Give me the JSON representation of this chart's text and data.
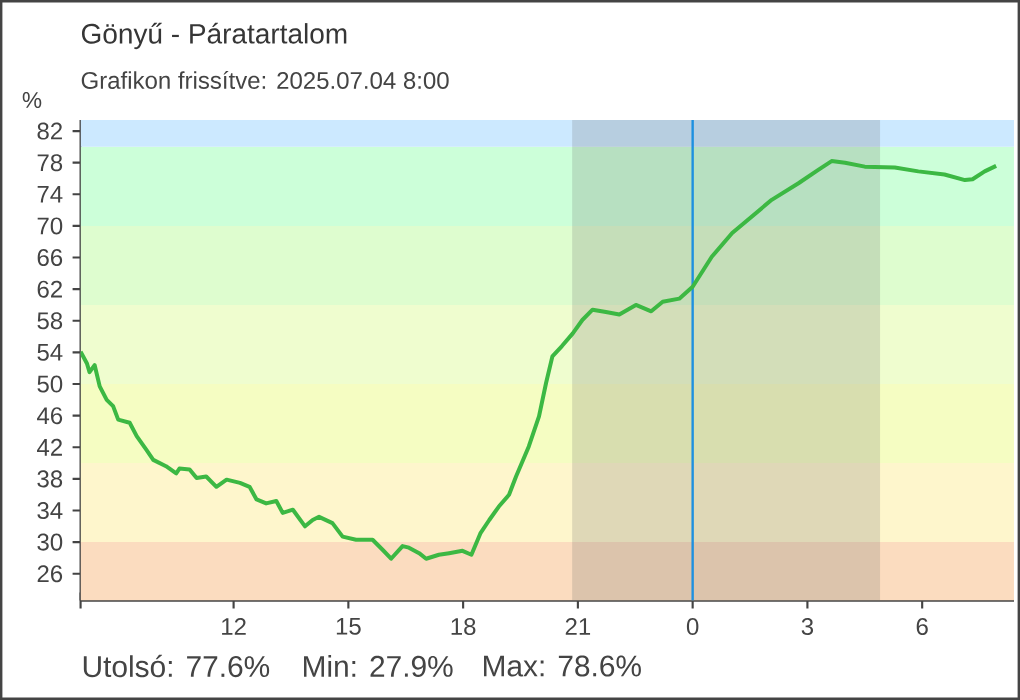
{
  "chart_data": {
    "type": "line",
    "title": "Gönyű - Páratartalom",
    "subtitle": "Grafikon frissítve: 2025.07.04 8:00",
    "ylabel": "%",
    "annotations": [
      "Utolsó: 77.6%",
      "Min: 27.9%",
      "Max: 78.6%"
    ],
    "xlim": [
      "2025-07-03T08:00",
      "2025-07-04T08:24"
    ],
    "ylim": [
      22.6,
      83.4
    ],
    "xticks": [
      {
        "value": "2025-07-03T08:00",
        "label": null
      },
      {
        "value": "2025-07-03T12:00",
        "label": "12"
      },
      {
        "value": "2025-07-03T15:00",
        "label": "15"
      },
      {
        "value": "2025-07-03T18:00",
        "label": "18"
      },
      {
        "value": "2025-07-03T21:00",
        "label": "21"
      },
      {
        "value": "2025-07-04T00:00",
        "label": "0"
      },
      {
        "value": "2025-07-04T03:00",
        "label": "3"
      },
      {
        "value": "2025-07-04T06:00",
        "label": "6"
      }
    ],
    "yticks": [
      26,
      30,
      34,
      38,
      42,
      46,
      50,
      54,
      58,
      62,
      66,
      70,
      74,
      78,
      82
    ],
    "grid": false,
    "bands": [
      {
        "axis": "y",
        "from": 22.6,
        "to": 30,
        "color": "#fbdcbf"
      },
      {
        "axis": "y",
        "from": 30,
        "to": 40,
        "color": "#fef6cc"
      },
      {
        "axis": "y",
        "from": 40,
        "to": 50,
        "color": "#f5fdc2"
      },
      {
        "axis": "y",
        "from": 50,
        "to": 60,
        "color": "#effdcf"
      },
      {
        "axis": "y",
        "from": 60,
        "to": 70,
        "color": "#defdcf"
      },
      {
        "axis": "y",
        "from": 70,
        "to": 80,
        "color": "#ccffd9"
      },
      {
        "axis": "y",
        "from": 80,
        "to": 83.4,
        "color": "#cce9ff"
      },
      {
        "axis": "x",
        "from": "2025-07-03T20:51",
        "to": "2025-07-04T04:54",
        "color": "#646464"
      }
    ],
    "ref_lines": [
      {
        "axis": "x",
        "value": "2025-07-04T00:00",
        "color": "#1e90e0"
      }
    ],
    "series": [
      {
        "color": "#3cb843",
        "x": [
          "2025-07-03T08:00",
          "2025-07-03T08:10",
          "2025-07-03T08:14",
          "2025-07-03T08:22",
          "2025-07-03T08:30",
          "2025-07-03T08:41",
          "2025-07-03T08:51",
          "2025-07-03T08:59",
          "2025-07-03T09:17",
          "2025-07-03T09:28",
          "2025-07-03T09:43",
          "2025-07-03T09:54",
          "2025-07-03T10:14",
          "2025-07-03T10:30",
          "2025-07-03T10:35",
          "2025-07-03T10:51",
          "2025-07-03T11:02",
          "2025-07-03T11:17",
          "2025-07-03T11:33",
          "2025-07-03T11:49",
          "2025-07-03T12:10",
          "2025-07-03T12:25",
          "2025-07-03T12:36",
          "2025-07-03T12:51",
          "2025-07-03T13:07",
          "2025-07-03T13:17",
          "2025-07-03T13:33",
          "2025-07-03T13:52",
          "2025-07-03T14:04",
          "2025-07-03T14:14",
          "2025-07-03T14:35",
          "2025-07-03T14:51",
          "2025-07-03T15:12",
          "2025-07-03T15:38",
          "2025-07-03T15:54",
          "2025-07-03T16:07",
          "2025-07-03T16:25",
          "2025-07-03T16:35",
          "2025-07-03T16:51",
          "2025-07-03T17:02",
          "2025-07-03T17:22",
          "2025-07-03T17:38",
          "2025-07-03T17:59",
          "2025-07-03T18:13",
          "2025-07-03T18:27",
          "2025-07-03T18:41",
          "2025-07-03T18:56",
          "2025-07-03T19:12",
          "2025-07-03T19:23",
          "2025-07-03T19:43",
          "2025-07-03T19:59",
          "2025-07-03T20:10",
          "2025-07-03T20:20",
          "2025-07-03T20:35",
          "2025-07-03T20:52",
          "2025-07-03T21:07",
          "2025-07-03T21:23",
          "2025-07-03T21:44",
          "2025-07-03T22:05",
          "2025-07-03T22:31",
          "2025-07-03T22:55",
          "2025-07-03T23:13",
          "2025-07-03T23:39",
          "2025-07-04T00:00",
          "2025-07-04T00:30",
          "2025-07-04T01:02",
          "2025-07-04T01:33",
          "2025-07-04T02:04",
          "2025-07-04T02:46",
          "2025-07-04T03:17",
          "2025-07-04T03:38",
          "2025-07-04T03:59",
          "2025-07-04T04:30",
          "2025-07-04T05:17",
          "2025-07-04T05:54",
          "2025-07-04T06:35",
          "2025-07-04T07:07",
          "2025-07-04T07:19",
          "2025-07-04T07:38",
          "2025-07-04T07:56"
        ],
        "values": [
          54.1,
          52.6,
          51.5,
          52.4,
          49.7,
          48.0,
          47.2,
          45.5,
          45.1,
          43.4,
          41.7,
          40.4,
          39.6,
          38.7,
          39.3,
          39.2,
          38.1,
          38.3,
          37.0,
          37.9,
          37.5,
          37.0,
          35.4,
          34.9,
          35.2,
          33.7,
          34.1,
          32.0,
          32.8,
          33.2,
          32.4,
          30.7,
          30.3,
          30.3,
          29.0,
          27.9,
          29.5,
          29.3,
          28.6,
          27.9,
          28.4,
          28.6,
          28.9,
          28.4,
          31.1,
          32.8,
          34.5,
          36.0,
          38.3,
          42.1,
          45.9,
          50.1,
          53.5,
          54.8,
          56.4,
          58.1,
          59.4,
          59.1,
          58.8,
          60.0,
          59.2,
          60.4,
          60.8,
          62.3,
          66.1,
          69.1,
          71.2,
          73.3,
          75.4,
          77.1,
          78.2,
          78.0,
          77.5,
          77.4,
          76.9,
          76.5,
          75.8,
          75.9,
          76.9,
          77.6
        ]
      }
    ]
  }
}
